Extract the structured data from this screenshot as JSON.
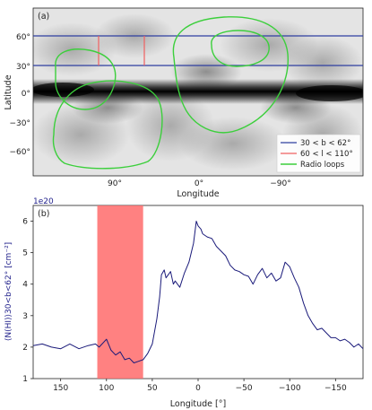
{
  "chart_data": [
    {
      "type": "map",
      "panel_label": "(a)",
      "xlabel": "Longitude",
      "ylabel": "Latitude",
      "x_tick_labels": [
        "90°",
        "0°",
        "−90°"
      ],
      "y_tick_labels": [
        "60°",
        "30°",
        "0°",
        "−30°",
        "−60°"
      ],
      "projection": "Mollweide",
      "latitude_band": [
        30,
        62
      ],
      "longitude_range": [
        60,
        110
      ],
      "legend": {
        "placement": "bottom-right",
        "entries": [
          {
            "label": "30 < b < 62°",
            "color": "#2f3fa0"
          },
          {
            "label": "60 < l < 110°",
            "color": "#f06060"
          },
          {
            "label": "Radio loops",
            "color": "#3ccf3c"
          }
        ]
      }
    },
    {
      "type": "line",
      "panel_label": "(b)",
      "xlabel": "Longitude [°]",
      "ylabel": "⟨N(HI)⟩30<b<62° [cm⁻²]",
      "offset_label": "1e20",
      "xlim": [
        180,
        -180
      ],
      "ylim": [
        1,
        6.5
      ],
      "x_ticks": [
        150,
        100,
        50,
        0,
        -50,
        -100,
        -150
      ],
      "x_tick_labels": [
        "150",
        "100",
        "50",
        "0",
        "−50",
        "−100",
        "−150"
      ],
      "y_ticks": [
        1,
        2,
        3,
        4,
        5,
        6
      ],
      "y_tick_labels": [
        "1",
        "2",
        "3",
        "4",
        "5",
        "6"
      ],
      "shaded_span": {
        "from": 110,
        "to": 60,
        "color": "#ff6b6b"
      },
      "series": [
        {
          "color": "#1a1a7a",
          "x": [
            180,
            170,
            160,
            150,
            140,
            130,
            120,
            112,
            108,
            100,
            95,
            90,
            85,
            80,
            75,
            70,
            65,
            60,
            55,
            50,
            45,
            42,
            40,
            37,
            35,
            30,
            27,
            25,
            20,
            15,
            10,
            5,
            2,
            0,
            -3,
            -5,
            -10,
            -15,
            -20,
            -25,
            -30,
            -35,
            -40,
            -45,
            -50,
            -55,
            -60,
            -65,
            -70,
            -75,
            -80,
            -85,
            -90,
            -95,
            -100,
            -105,
            -110,
            -115,
            -120,
            -125,
            -130,
            -135,
            -140,
            -145,
            -150,
            -155,
            -160,
            -165,
            -170,
            -175,
            -180
          ],
          "y": [
            2.05,
            2.1,
            2.0,
            1.95,
            2.1,
            1.95,
            2.05,
            2.1,
            2.0,
            2.25,
            1.9,
            1.75,
            1.85,
            1.6,
            1.65,
            1.5,
            1.55,
            1.6,
            1.8,
            2.1,
            2.9,
            3.6,
            4.3,
            4.45,
            4.2,
            4.4,
            4.0,
            4.1,
            3.9,
            4.35,
            4.7,
            5.3,
            6.0,
            5.85,
            5.75,
            5.6,
            5.5,
            5.45,
            5.2,
            5.05,
            4.9,
            4.6,
            4.45,
            4.4,
            4.3,
            4.25,
            4.0,
            4.3,
            4.5,
            4.2,
            4.35,
            4.1,
            4.2,
            4.7,
            4.55,
            4.2,
            3.9,
            3.4,
            3.0,
            2.75,
            2.55,
            2.6,
            2.45,
            2.3,
            2.3,
            2.2,
            2.25,
            2.15,
            2.0,
            2.1,
            1.95
          ]
        }
      ]
    }
  ]
}
